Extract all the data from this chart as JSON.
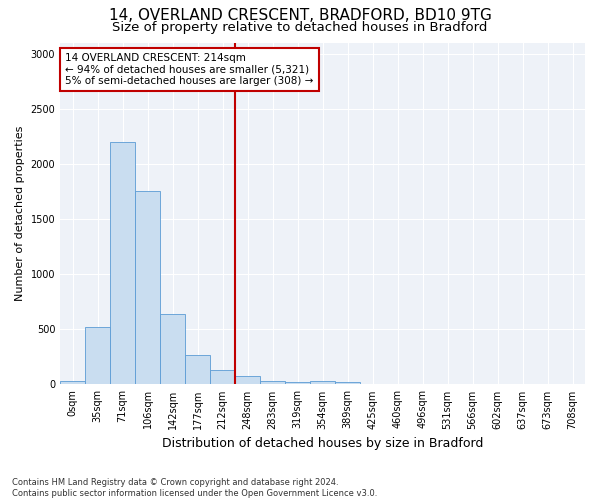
{
  "title1": "14, OVERLAND CRESCENT, BRADFORD, BD10 9TG",
  "title2": "Size of property relative to detached houses in Bradford",
  "xlabel": "Distribution of detached houses by size in Bradford",
  "ylabel": "Number of detached properties",
  "categories": [
    "0sqm",
    "35sqm",
    "71sqm",
    "106sqm",
    "142sqm",
    "177sqm",
    "212sqm",
    "248sqm",
    "283sqm",
    "319sqm",
    "354sqm",
    "389sqm",
    "425sqm",
    "460sqm",
    "496sqm",
    "531sqm",
    "566sqm",
    "602sqm",
    "637sqm",
    "673sqm",
    "708sqm"
  ],
  "values": [
    30,
    520,
    2200,
    1750,
    640,
    265,
    130,
    75,
    30,
    25,
    30,
    25,
    5,
    3,
    2,
    0,
    0,
    0,
    0,
    0,
    0
  ],
  "bar_color": "#c9ddf0",
  "bar_edge_color": "#5b9bd5",
  "vline_color": "#c00000",
  "vline_index": 6,
  "annotation_line1": "14 OVERLAND CRESCENT: 214sqm",
  "annotation_line2": "← 94% of detached houses are smaller (5,321)",
  "annotation_line3": "5% of semi-detached houses are larger (308) →",
  "annotation_box_edgecolor": "#c00000",
  "background_color": "#eef2f8",
  "grid_color": "#ffffff",
  "ylim": [
    0,
    3100
  ],
  "yticks": [
    0,
    500,
    1000,
    1500,
    2000,
    2500,
    3000
  ],
  "footnote": "Contains HM Land Registry data © Crown copyright and database right 2024.\nContains public sector information licensed under the Open Government Licence v3.0.",
  "title1_fontsize": 11,
  "title2_fontsize": 9.5,
  "xlabel_fontsize": 9,
  "ylabel_fontsize": 8,
  "tick_fontsize": 7,
  "annot_fontsize": 7.5,
  "footnote_fontsize": 6
}
